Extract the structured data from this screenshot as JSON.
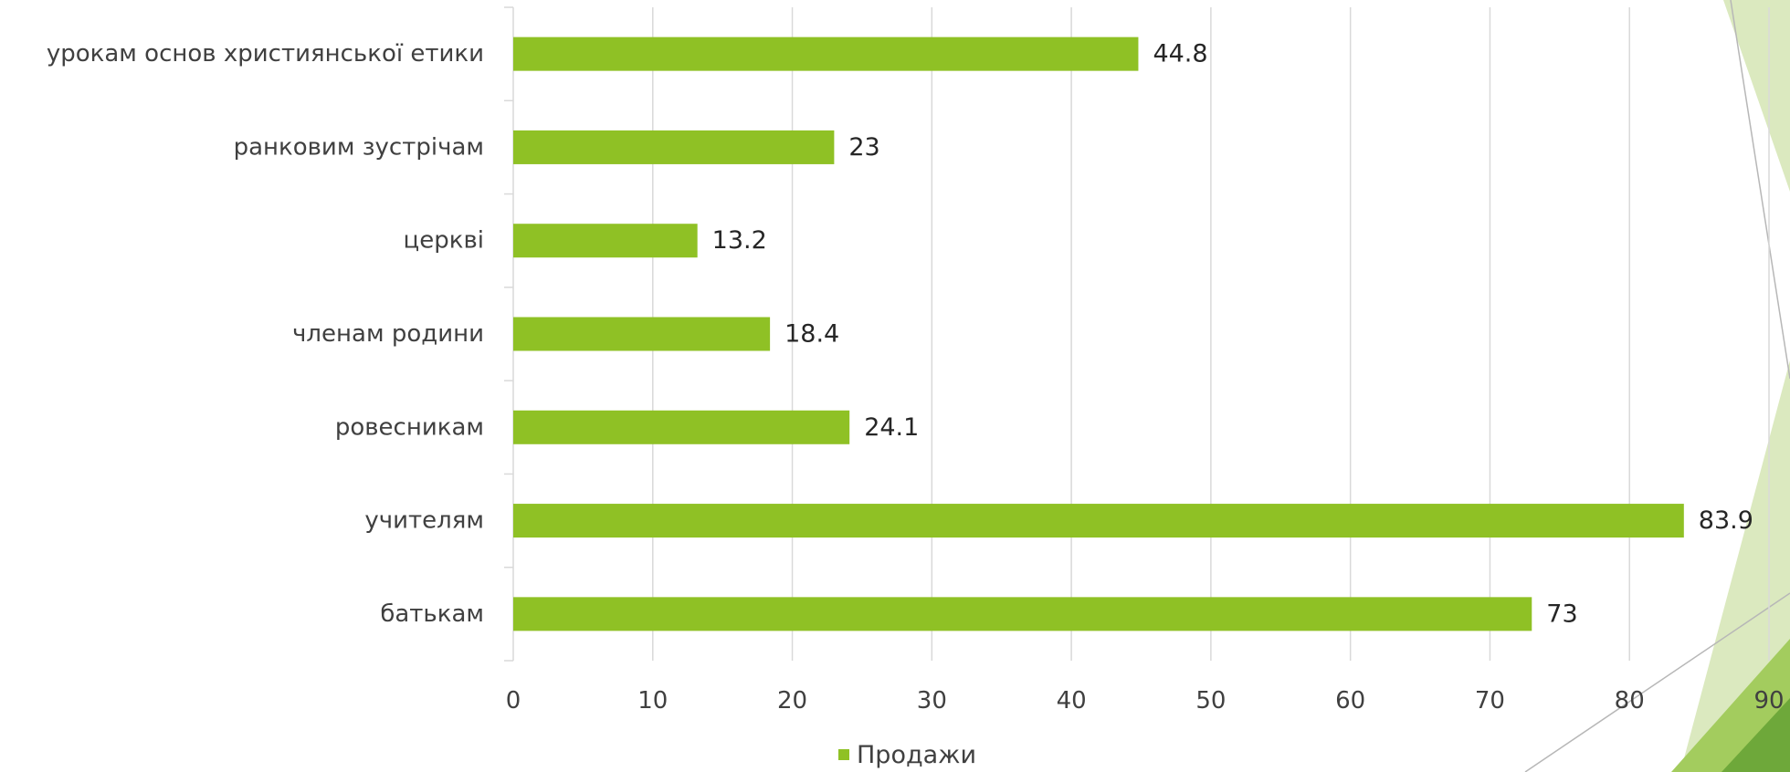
{
  "chart_data": {
    "type": "bar",
    "orientation": "horizontal",
    "categories": [
      "урокам основ християнської етики",
      "ранковим зустрічам",
      "церкві",
      "членам родини",
      "ровесникам",
      "учителям",
      "батькам"
    ],
    "series": [
      {
        "name": "Продажи",
        "values": [
          44.8,
          23,
          13.2,
          18.4,
          24.1,
          83.9,
          73
        ],
        "color": "#8fc125"
      }
    ],
    "data_labels": [
      "44.8",
      "23",
      "13.2",
      "18.4",
      "24.1",
      "83.9",
      "73"
    ],
    "x_ticks": [
      "0",
      "10",
      "20",
      "30",
      "40",
      "50",
      "60",
      "70",
      "80",
      "90"
    ],
    "xlim": [
      0,
      90
    ],
    "grid": "vertical",
    "legend": "bottom",
    "colors": {
      "bar": "#8fc125",
      "grid": "#d9d9d9",
      "text": "#404040",
      "decor_light": "#dbe9bf",
      "decor_mid": "#a3cc5e",
      "decor_dark": "#6ea83a"
    }
  }
}
